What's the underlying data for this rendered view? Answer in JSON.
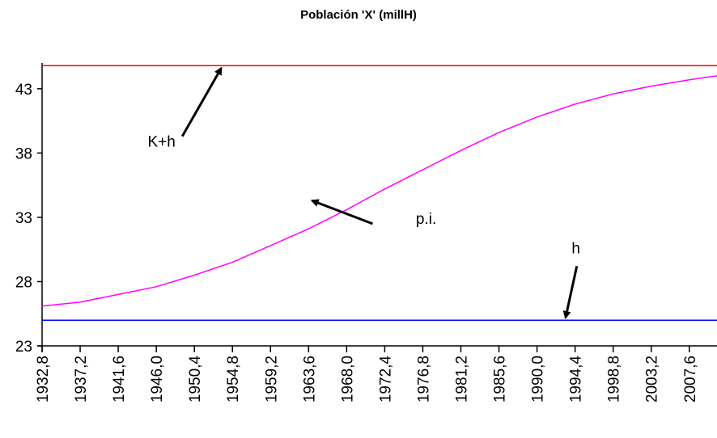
{
  "chart_data": {
    "type": "line",
    "title": "Población 'X' (millH)",
    "xlabel": "",
    "ylabel": "",
    "xlim": [
      1932.8,
      2010.8
    ],
    "ylim": [
      23,
      45
    ],
    "grid": false,
    "x_tick_labels": [
      "1932,8",
      "1937,2",
      "1941,6",
      "1946,0",
      "1950,4",
      "1954,8",
      "1959,2",
      "1963,6",
      "1968,0",
      "1972,4",
      "1976,8",
      "1981,2",
      "1985,6",
      "1990,0",
      "1994,4",
      "1998,8",
      "2003,2",
      "2007,6"
    ],
    "x_ticks": [
      1932.8,
      1937.2,
      1941.6,
      1946.0,
      1950.4,
      1954.8,
      1959.2,
      1963.6,
      1968.0,
      1972.4,
      1976.8,
      1981.2,
      1985.6,
      1990.0,
      1994.4,
      1998.8,
      2003.2,
      2007.6
    ],
    "y_tick_labels": [
      "23",
      "28",
      "33",
      "38",
      "43"
    ],
    "y_ticks": [
      23,
      28,
      33,
      38,
      43
    ],
    "series": [
      {
        "color": "#ff00ff",
        "x": [
          1932.8,
          1937.2,
          1941.6,
          1946.0,
          1950.4,
          1954.8,
          1959.2,
          1963.6,
          1968.0,
          1972.4,
          1976.8,
          1981.2,
          1985.6,
          1990.0,
          1994.4,
          1998.8,
          2003.2,
          2007.6,
          2010.8
        ],
        "y": [
          26.1,
          26.4,
          27.0,
          27.6,
          28.5,
          29.5,
          30.8,
          32.1,
          33.6,
          35.2,
          36.7,
          38.2,
          39.6,
          40.8,
          41.8,
          42.6,
          43.2,
          43.7,
          44.0
        ]
      },
      {
        "color": "#ff0000",
        "x": [
          1932.8,
          2010.8
        ],
        "y": [
          44.8,
          44.8
        ]
      },
      {
        "color": "#0000ff",
        "x": [
          1932.8,
          2010.8
        ],
        "y": [
          25.0,
          25.0
        ]
      }
    ],
    "annotations": [
      {
        "text": "K+h",
        "text_x": 1945.0,
        "text_y": 38.5,
        "arrow_from": [
          1949.0,
          39.3
        ],
        "arrow_to": [
          1953.5,
          44.6
        ]
      },
      {
        "text": "p.i.",
        "text_x": 1976.0,
        "text_y": 32.5,
        "arrow_from": [
          1971.0,
          32.5
        ],
        "arrow_to": [
          1964.0,
          34.3
        ]
      },
      {
        "text": "h",
        "text_x": 1994.0,
        "text_y": 30.2,
        "arrow_from": [
          1994.6,
          29.2
        ],
        "arrow_to": [
          1993.3,
          25.2
        ]
      }
    ]
  }
}
